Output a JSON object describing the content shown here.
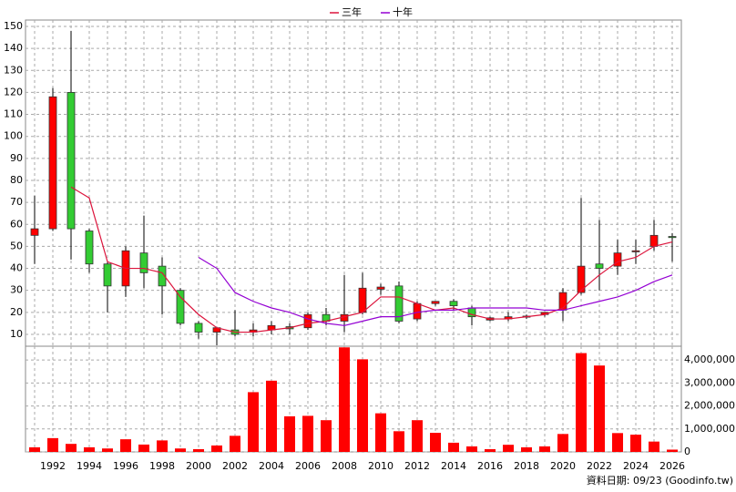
{
  "chart_data": [
    {
      "type": "candlestick",
      "x": [
        1991,
        1992,
        1993,
        1994,
        1995,
        1996,
        1997,
        1998,
        1999,
        2000,
        2001,
        2002,
        2003,
        2004,
        2005,
        2006,
        2007,
        2008,
        2009,
        2010,
        2011,
        2012,
        2013,
        2014,
        2015,
        2016,
        2017,
        2018,
        2019,
        2020,
        2021,
        2022,
        2023,
        2024,
        2025,
        2026
      ],
      "open": [
        55,
        58,
        120,
        57,
        42,
        32,
        47,
        41,
        30,
        15,
        11,
        12,
        11,
        12,
        13.5,
        13,
        19,
        16,
        20,
        30.5,
        32,
        17,
        24,
        25,
        22,
        16.5,
        17,
        17.8,
        19,
        21,
        29,
        42,
        41,
        47.5,
        50,
        54.5
      ],
      "high": [
        73,
        122,
        148,
        58,
        43,
        50,
        64,
        45,
        31,
        16,
        13,
        21,
        15,
        16,
        15,
        20,
        22,
        37,
        38,
        33,
        34,
        25,
        25,
        26,
        23,
        18,
        20,
        19,
        20,
        31,
        72,
        62,
        53,
        53,
        62,
        56
      ],
      "low": [
        42,
        57,
        44,
        38,
        20,
        27,
        31,
        19,
        14,
        8,
        5,
        9,
        9,
        10,
        10,
        12,
        14,
        11,
        19,
        28,
        15,
        16,
        23,
        21,
        14,
        16,
        16,
        17,
        18,
        16,
        28,
        30,
        37,
        42,
        48,
        43
      ],
      "close": [
        58,
        118,
        58,
        42,
        32,
        48,
        38,
        32,
        15,
        11,
        13,
        10,
        12,
        14,
        12.5,
        19,
        16,
        19,
        31,
        31.5,
        16,
        24,
        25,
        23,
        18,
        17.5,
        18,
        18.3,
        20,
        29,
        41,
        40,
        47,
        48,
        55,
        54
      ],
      "up_color": "#ff0000",
      "down_color": "#33cc33",
      "series": [
        {
          "name": "三年",
          "color": "#dc143c",
          "values": [
            null,
            null,
            77,
            72,
            43,
            40,
            40,
            38,
            27,
            19,
            13,
            11,
            11,
            12,
            13,
            15,
            16,
            18,
            20,
            27,
            27,
            24,
            21,
            22,
            19,
            17,
            17,
            18,
            19,
            22,
            30,
            37,
            43,
            45,
            50,
            52
          ]
        },
        {
          "name": "十年",
          "color": "#9400d3",
          "values": [
            null,
            null,
            null,
            null,
            null,
            null,
            null,
            null,
            null,
            45,
            40,
            29,
            25,
            22,
            20,
            17,
            15,
            14,
            16,
            18,
            18,
            20,
            21,
            21,
            22,
            22,
            22,
            22,
            21,
            21,
            23,
            25,
            27,
            30,
            34,
            37
          ]
        }
      ],
      "xlim": [
        1990.5,
        2026.5
      ],
      "ylim": [
        4.6,
        152.9
      ],
      "yticks": [
        10,
        20,
        30,
        40,
        50,
        60,
        70,
        80,
        90,
        100,
        110,
        120,
        130,
        140,
        150
      ],
      "grid": true
    },
    {
      "type": "bar",
      "x": [
        1991,
        1992,
        1993,
        1994,
        1995,
        1996,
        1997,
        1998,
        1999,
        2000,
        2001,
        2002,
        2003,
        2004,
        2005,
        2006,
        2007,
        2008,
        2009,
        2010,
        2011,
        2012,
        2013,
        2014,
        2015,
        2016,
        2017,
        2018,
        2019,
        2020,
        2021,
        2022,
        2023,
        2024,
        2025,
        2026
      ],
      "values": [
        200000,
        600000,
        350000,
        200000,
        150000,
        550000,
        320000,
        500000,
        150000,
        120000,
        280000,
        700000,
        2600000,
        3100000,
        1550000,
        1570000,
        1380000,
        4550000,
        4030000,
        1680000,
        900000,
        1380000,
        830000,
        400000,
        240000,
        120000,
        310000,
        200000,
        240000,
        780000,
        4300000,
        3760000,
        820000,
        750000,
        450000,
        100000
      ],
      "color": "#ff0000",
      "xlim": [
        1990.5,
        2026.5
      ],
      "xticks": [
        1992,
        1994,
        1996,
        1998,
        2000,
        2002,
        2004,
        2006,
        2008,
        2010,
        2012,
        2014,
        2016,
        2018,
        2020,
        2022,
        2024,
        2026
      ],
      "ylim": [
        0,
        4600000
      ],
      "yticks": [
        0,
        {
          "value": 1000000,
          "label": "1,000,000"
        },
        {
          "value": 2000000,
          "label": "2,000,000"
        },
        {
          "value": 3000000,
          "label": "3,000,000"
        },
        {
          "value": 4000000,
          "label": "4,000,000"
        }
      ],
      "grid": true
    }
  ],
  "footer": "資料日期: 09/23 (Goodinfo.tw)"
}
